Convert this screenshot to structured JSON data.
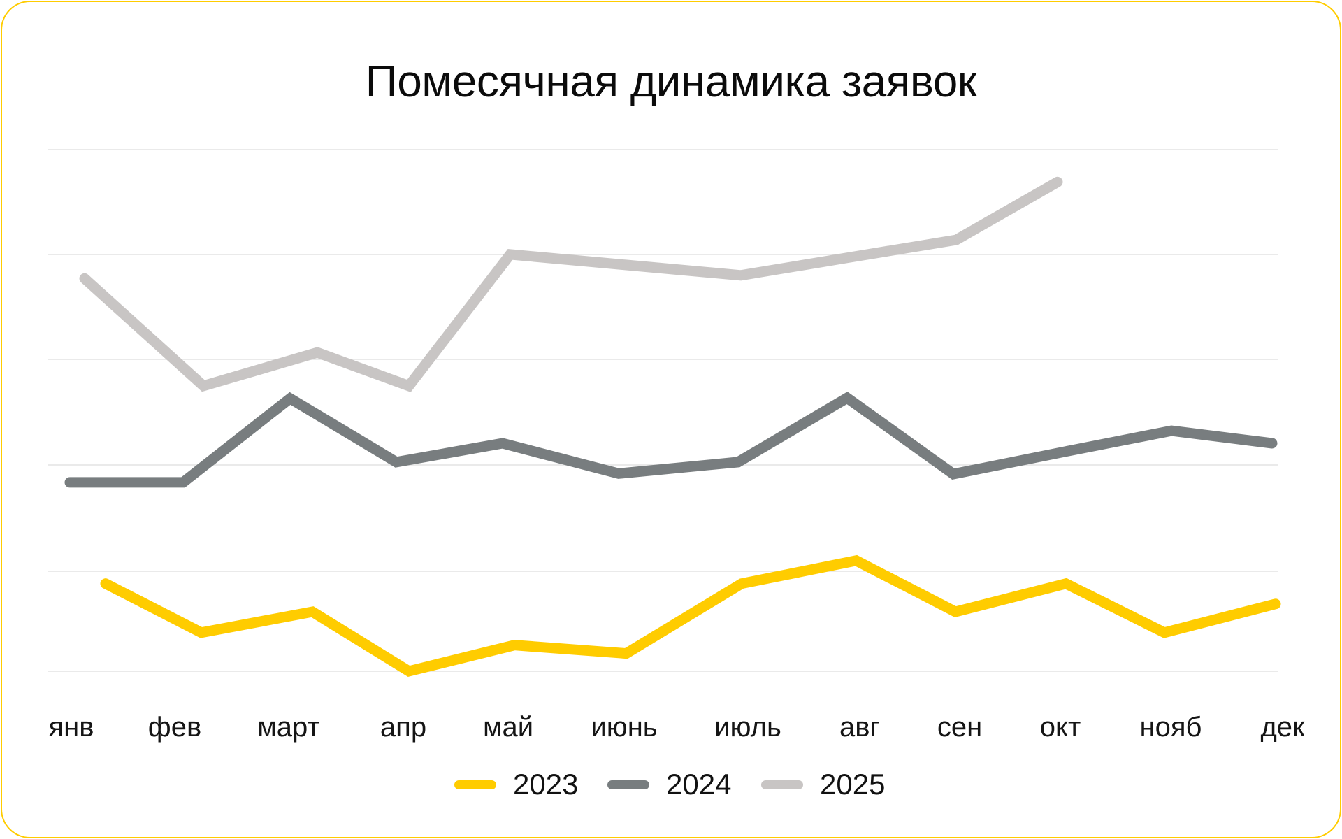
{
  "card": {
    "border_color": "#FFCC00"
  },
  "title": "Помесячная динамика заявок",
  "x_axis": {
    "labels": [
      "янв",
      "фев",
      "март",
      "апр",
      "май",
      "июнь",
      "июль",
      "авг",
      "сен",
      "окт",
      "нояб",
      "дек"
    ]
  },
  "legend": [
    {
      "label": "2023",
      "color": "#FFCC00"
    },
    {
      "label": "2024",
      "color": "#787D7F"
    },
    {
      "label": "2025",
      "color": "#C8C5C4"
    }
  ],
  "chart_data": {
    "type": "line",
    "title": "Помесячная динамика заявок",
    "xlabel": "",
    "ylabel": "",
    "y_axis_note": "No y-axis tick labels shown; values are relative units (bottom gridline = 0, top gridline = 100)",
    "ylim": [
      0,
      100
    ],
    "grid": {
      "horizontal": true,
      "vertical": false,
      "lines": [
        0,
        20,
        40,
        60,
        80,
        100
      ]
    },
    "legend_position": "bottom",
    "categories": [
      "янв",
      "фев",
      "март",
      "апр",
      "май",
      "июнь",
      "июль",
      "авг",
      "сен",
      "окт",
      "нояб",
      "дек"
    ],
    "series": [
      {
        "name": "2023",
        "color": "#FFCC00",
        "values": [
          16.8,
          7.4,
          11.4,
          0.0,
          5.0,
          3.4,
          16.8,
          21.2,
          11.4,
          16.8,
          7.4,
          12.9
        ]
      },
      {
        "name": "2024",
        "color": "#787D7F",
        "values": [
          36.2,
          36.2,
          52.3,
          40.1,
          43.7,
          37.9,
          40.1,
          52.4,
          37.8,
          42.0,
          46.1,
          43.7
        ]
      },
      {
        "name": "2025",
        "color": "#C8C5C4",
        "values": [
          75.3,
          54.7,
          61.1,
          54.7,
          79.9,
          77.9,
          75.9,
          79.3,
          82.7,
          93.8,
          null,
          null
        ]
      }
    ]
  }
}
